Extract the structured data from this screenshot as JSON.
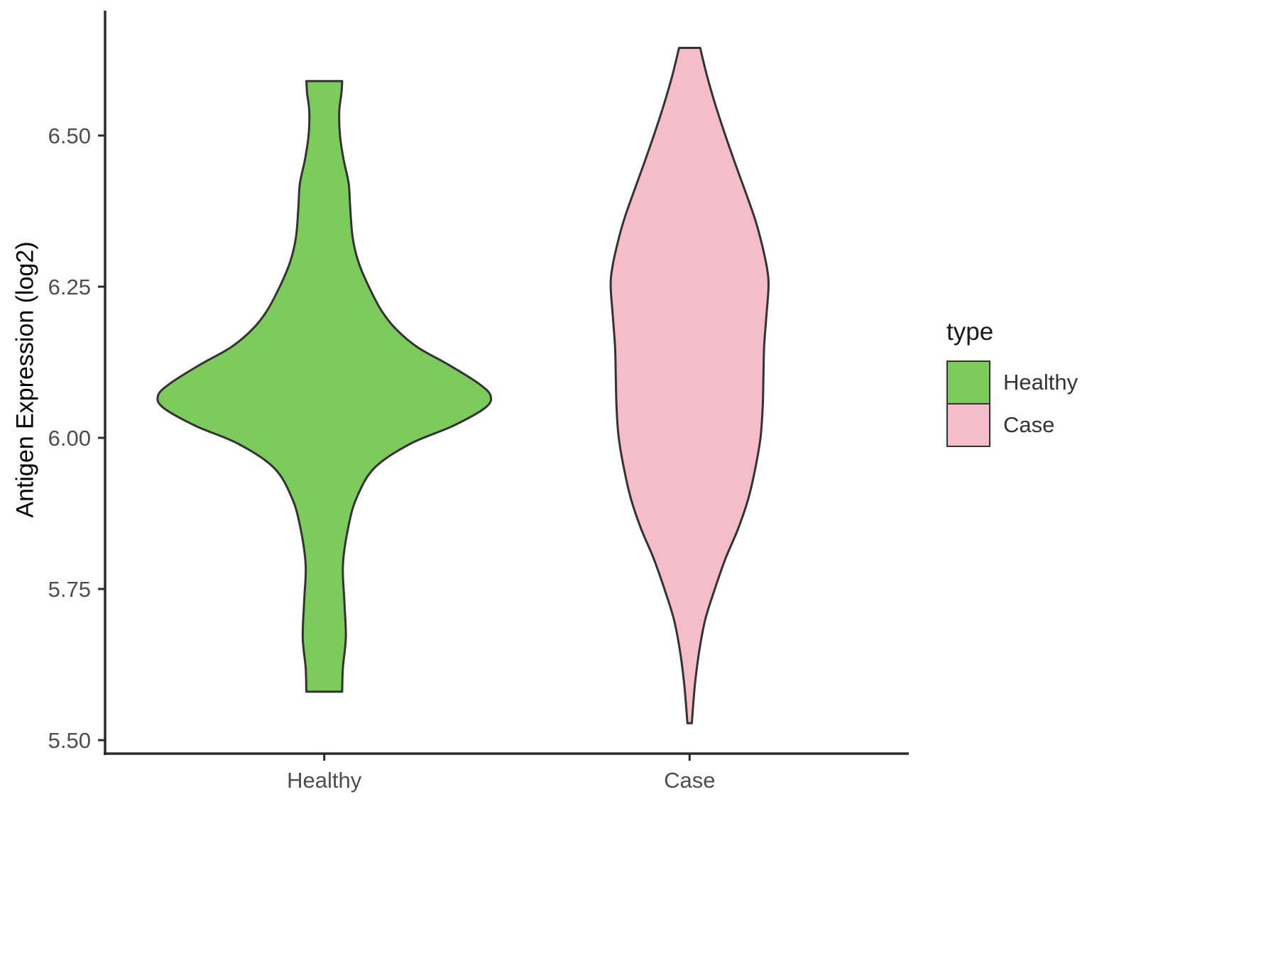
{
  "chart_data": {
    "type": "violin",
    "title": "",
    "xlabel": "",
    "ylabel": "Antigen Expression (log2)",
    "categories": [
      "Healthy",
      "Case"
    ],
    "yticks": [
      5.5,
      5.75,
      6.0,
      6.25,
      6.5
    ],
    "ytick_labels": [
      "5.50",
      "5.75",
      "6.00",
      "6.25",
      "6.50"
    ],
    "ylim": [
      5.45,
      6.72
    ],
    "grid": "off",
    "legend": {
      "title": "type",
      "position": "right",
      "entries": [
        {
          "label": "Healthy",
          "color": "#7CCB5C"
        },
        {
          "label": "Case",
          "color": "#F5BCC9"
        }
      ]
    },
    "outline_color": "#333333",
    "axis_color": "#2b2b2b",
    "tick_text_color": "#4d4d4d",
    "series": [
      {
        "name": "Healthy",
        "color": "#7CCB5C",
        "value_min": 5.58,
        "value_max": 6.59,
        "profile": [
          [
            5.58,
            0.049
          ],
          [
            5.62,
            0.051
          ],
          [
            5.67,
            0.059
          ],
          [
            5.73,
            0.055
          ],
          [
            5.79,
            0.051
          ],
          [
            5.85,
            0.065
          ],
          [
            5.9,
            0.088
          ],
          [
            5.95,
            0.137
          ],
          [
            5.99,
            0.235
          ],
          [
            6.02,
            0.353
          ],
          [
            6.05,
            0.441
          ],
          [
            6.07,
            0.455
          ],
          [
            6.09,
            0.422
          ],
          [
            6.12,
            0.343
          ],
          [
            6.15,
            0.255
          ],
          [
            6.18,
            0.196
          ],
          [
            6.21,
            0.157
          ],
          [
            6.25,
            0.122
          ],
          [
            6.29,
            0.094
          ],
          [
            6.33,
            0.078
          ],
          [
            6.38,
            0.071
          ],
          [
            6.42,
            0.067
          ],
          [
            6.46,
            0.053
          ],
          [
            6.5,
            0.043
          ],
          [
            6.54,
            0.041
          ],
          [
            6.57,
            0.047
          ],
          [
            6.59,
            0.049
          ]
        ]
      },
      {
        "name": "Case",
        "color": "#F5BCC9",
        "value_min": 5.53,
        "value_max": 6.65,
        "profile": [
          [
            5.528,
            0.006
          ],
          [
            5.56,
            0.01
          ],
          [
            5.6,
            0.016
          ],
          [
            5.65,
            0.027
          ],
          [
            5.7,
            0.043
          ],
          [
            5.75,
            0.069
          ],
          [
            5.8,
            0.098
          ],
          [
            5.85,
            0.133
          ],
          [
            5.9,
            0.161
          ],
          [
            5.95,
            0.18
          ],
          [
            6.0,
            0.194
          ],
          [
            6.05,
            0.2
          ],
          [
            6.1,
            0.202
          ],
          [
            6.15,
            0.204
          ],
          [
            6.2,
            0.21
          ],
          [
            6.25,
            0.216
          ],
          [
            6.28,
            0.212
          ],
          [
            6.32,
            0.198
          ],
          [
            6.36,
            0.18
          ],
          [
            6.4,
            0.157
          ],
          [
            6.45,
            0.127
          ],
          [
            6.5,
            0.098
          ],
          [
            6.55,
            0.071
          ],
          [
            6.6,
            0.047
          ],
          [
            6.645,
            0.029
          ]
        ]
      }
    ]
  }
}
